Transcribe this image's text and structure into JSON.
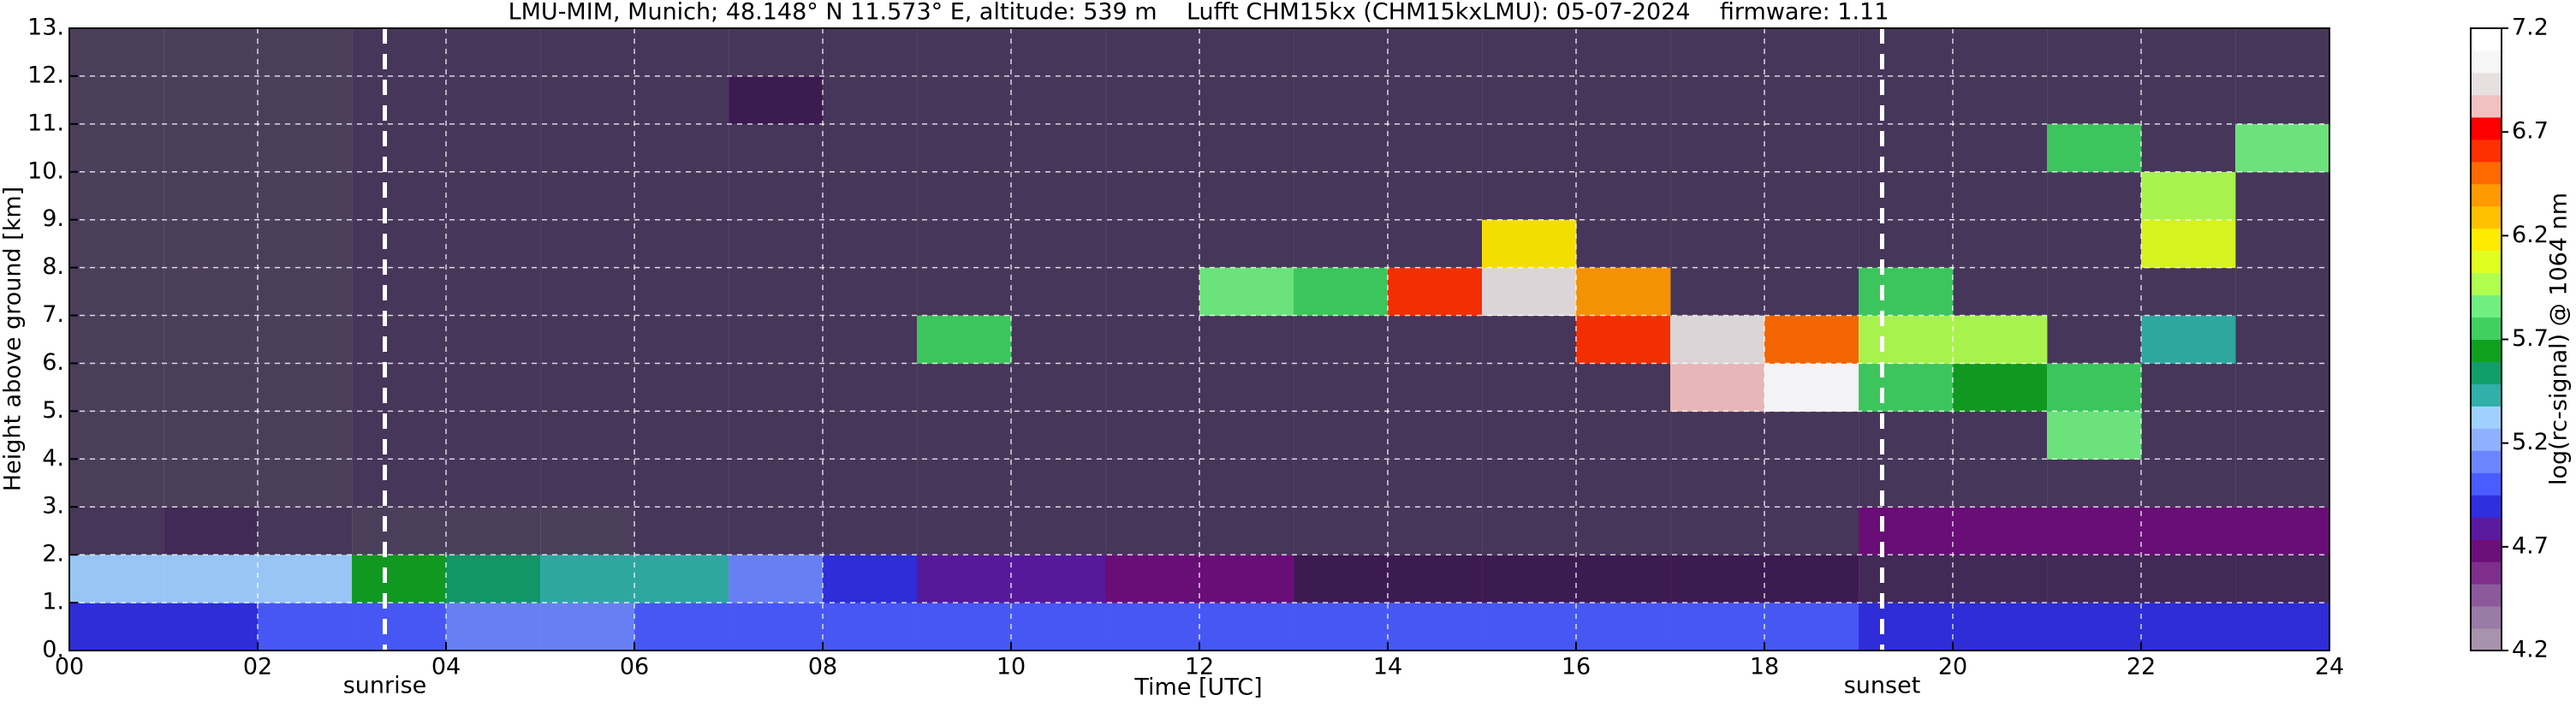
{
  "chart_data": {
    "type": "heatmap",
    "title": "LMU-MIM, Munich; 48.148° N 11.573° E, altitude: 539 m    Lufft CHM15kx (CHM15kxLMU): 05-07-2024    firmware: 1.11",
    "x_label": "Time [UTC]",
    "y_label": "Height above ground [km]",
    "colorbar_label": "log(rc-signal) @ 1064 nm",
    "xbins": [
      0,
      1,
      2,
      3,
      4,
      5,
      6,
      7,
      8,
      9,
      10,
      11,
      12,
      13,
      14,
      15,
      16,
      17,
      18,
      19,
      20,
      21,
      22,
      23,
      24
    ],
    "ybins": [
      0,
      1,
      2,
      3,
      4,
      5,
      6,
      7,
      8,
      9,
      10,
      11,
      12,
      13
    ],
    "z": [
      [
        4.9,
        4.9,
        5.0,
        5.0,
        5.1,
        5.1,
        5.0,
        5.0,
        5.0,
        5.0,
        5.0,
        5.0,
        5.0,
        5.0,
        5.0,
        5.0,
        5.0,
        5.0,
        5.0,
        4.9,
        4.9,
        4.9,
        4.9,
        4.9
      ],
      [
        5.3,
        5.3,
        5.3,
        5.6,
        5.5,
        5.4,
        5.4,
        5.1,
        4.9,
        4.8,
        4.8,
        4.7,
        4.7,
        4.6,
        4.6,
        4.6,
        4.6,
        4.6,
        4.6,
        4.5,
        4.5,
        4.5,
        4.5,
        4.5
      ],
      [
        4.4,
        4.5,
        4.4,
        4.3,
        4.3,
        4.3,
        4.4,
        4.4,
        4.4,
        4.4,
        4.4,
        4.4,
        4.4,
        4.4,
        4.4,
        4.4,
        4.4,
        4.4,
        4.4,
        4.7,
        4.7,
        4.7,
        4.7,
        4.7
      ],
      [
        4.3,
        4.3,
        4.3,
        4.4,
        4.4,
        4.4,
        4.4,
        4.4,
        4.4,
        4.4,
        4.4,
        4.4,
        4.4,
        4.4,
        4.4,
        4.4,
        4.4,
        4.4,
        4.4,
        4.4,
        4.4,
        4.4,
        4.4,
        4.4
      ],
      [
        4.3,
        4.3,
        4.3,
        4.4,
        4.4,
        4.4,
        4.4,
        4.4,
        4.4,
        4.4,
        4.4,
        4.4,
        4.4,
        4.4,
        4.4,
        4.4,
        4.4,
        4.4,
        4.4,
        4.4,
        4.4,
        5.9,
        4.4,
        4.4
      ],
      [
        4.3,
        4.3,
        4.3,
        4.4,
        4.4,
        4.4,
        4.4,
        4.4,
        4.4,
        4.4,
        4.4,
        4.4,
        4.4,
        4.4,
        4.4,
        4.4,
        4.4,
        6.8,
        7.1,
        5.8,
        5.6,
        5.7,
        4.4,
        4.4
      ],
      [
        4.3,
        4.3,
        4.3,
        4.4,
        4.4,
        4.4,
        4.4,
        4.4,
        4.4,
        5.8,
        4.4,
        4.4,
        4.4,
        4.4,
        4.4,
        4.4,
        6.6,
        6.9,
        6.5,
        6.0,
        6.0,
        4.4,
        5.4,
        4.4
      ],
      [
        4.3,
        4.3,
        4.3,
        4.4,
        4.4,
        4.4,
        4.4,
        4.4,
        4.4,
        4.4,
        4.4,
        4.4,
        5.9,
        5.8,
        6.6,
        6.9,
        6.4,
        4.4,
        4.4,
        5.8,
        4.4,
        4.4,
        4.4,
        4.4
      ],
      [
        4.3,
        4.3,
        4.3,
        4.4,
        4.4,
        4.4,
        4.4,
        4.4,
        4.4,
        4.4,
        4.4,
        4.4,
        4.4,
        4.4,
        4.4,
        6.2,
        4.4,
        4.4,
        4.4,
        4.4,
        4.4,
        4.4,
        6.1,
        4.4
      ],
      [
        4.3,
        4.3,
        4.3,
        4.4,
        4.4,
        4.4,
        4.4,
        4.4,
        4.4,
        4.4,
        4.4,
        4.4,
        4.4,
        4.4,
        4.4,
        4.4,
        4.4,
        4.4,
        4.4,
        4.4,
        4.4,
        4.4,
        6.0,
        4.4
      ],
      [
        4.3,
        4.3,
        4.3,
        4.4,
        4.4,
        4.4,
        4.4,
        4.4,
        4.4,
        4.4,
        4.4,
        4.4,
        4.4,
        4.4,
        4.4,
        4.4,
        4.4,
        4.4,
        4.4,
        4.4,
        4.4,
        5.8,
        4.4,
        5.9
      ],
      [
        4.3,
        4.3,
        4.3,
        4.4,
        4.4,
        4.4,
        4.4,
        4.6,
        4.4,
        4.4,
        4.4,
        4.4,
        4.4,
        4.4,
        4.4,
        4.4,
        4.4,
        4.4,
        4.4,
        4.4,
        4.4,
        4.4,
        4.4,
        4.4
      ],
      [
        4.3,
        4.3,
        4.3,
        4.4,
        4.4,
        4.4,
        4.4,
        4.4,
        4.4,
        4.4,
        4.4,
        4.4,
        4.4,
        4.4,
        4.4,
        4.4,
        4.4,
        4.4,
        4.4,
        4.4,
        4.4,
        4.4,
        4.4,
        4.4
      ]
    ],
    "xlim": [
      0,
      24
    ],
    "ylim": [
      0,
      13
    ],
    "xticks": [
      {
        "value": 0,
        "label": "00"
      },
      {
        "value": 2,
        "label": "02"
      },
      {
        "value": 4,
        "label": "04"
      },
      {
        "value": 6,
        "label": "06"
      },
      {
        "value": 8,
        "label": "08"
      },
      10,
      12,
      14,
      16,
      18,
      20,
      22,
      24
    ],
    "yticks": [
      {
        "value": 0,
        "label": "0."
      },
      {
        "value": 1,
        "label": "1."
      },
      {
        "value": 2,
        "label": "2."
      },
      {
        "value": 3,
        "label": "3."
      },
      {
        "value": 4,
        "label": "4."
      },
      {
        "value": 5,
        "label": "5."
      },
      {
        "value": 6,
        "label": "6."
      },
      {
        "value": 7,
        "label": "7."
      },
      {
        "value": 8,
        "label": "8."
      },
      {
        "value": 9,
        "label": "9."
      },
      {
        "value": 10,
        "label": "10."
      },
      {
        "value": 11,
        "label": "11."
      },
      {
        "value": 12,
        "label": "12."
      },
      {
        "value": 13,
        "label": "13."
      }
    ],
    "clim": [
      4.2,
      7.2
    ],
    "cticks": [
      4.2,
      4.7,
      5.2,
      5.7,
      6.2,
      6.7,
      7.2
    ],
    "colormap": [
      "#a893ad",
      "#9a7aa6",
      "#8c5a9c",
      "#7e2f8c",
      "#6d0f7a",
      "#5a1aa0",
      "#2f2fe0",
      "#4a5cff",
      "#6d86ff",
      "#8fb0ff",
      "#9fd0ff",
      "#30b0a8",
      "#129e6a",
      "#10a020",
      "#3fd060",
      "#70ee80",
      "#b0ff50",
      "#e0ff20",
      "#ffea00",
      "#ffc000",
      "#ff9a00",
      "#ff6a00",
      "#ff3000",
      "#ff0000",
      "#f2c0c0",
      "#e6e0e0",
      "#f6f6f6",
      "#ffffff"
    ],
    "grid": true,
    "annotations": [
      {
        "x": 3.35,
        "label": "sunrise"
      },
      {
        "x": 19.25,
        "label": "sunset"
      }
    ]
  }
}
